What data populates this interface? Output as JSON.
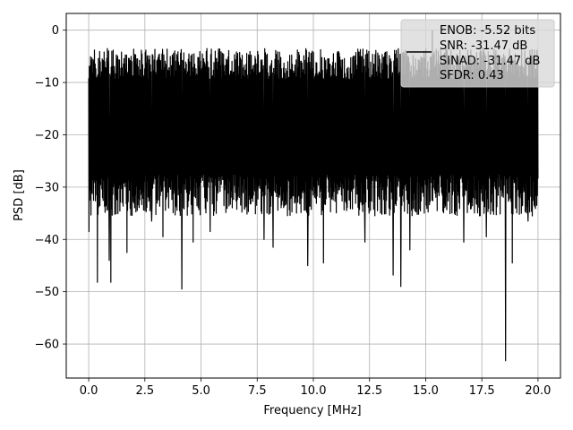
{
  "chart_data": {
    "type": "line",
    "xlabel": "Frequency [MHz]",
    "ylabel": "PSD [dB]",
    "xlim": [
      -1.0,
      21.0
    ],
    "ylim": [
      -66.5,
      3.2
    ],
    "xticks": [
      0.0,
      2.5,
      5.0,
      7.5,
      10.0,
      12.5,
      15.0,
      17.5,
      20.0
    ],
    "xtick_labels": [
      "0.0",
      "2.5",
      "5.0",
      "7.5",
      "10.0",
      "12.5",
      "15.0",
      "17.5",
      "20.0"
    ],
    "yticks": [
      0,
      -10,
      -20,
      -30,
      -40,
      -50,
      -60
    ],
    "ytick_labels": [
      "0",
      "−10",
      "−20",
      "−30",
      "−40",
      "−50",
      "−60"
    ],
    "grid": true,
    "legend_position": "upper-right",
    "line_color": "#000000",
    "series": [
      {
        "name": "ENOB: -5.52 bits\nSNR: -31.47 dB\nSINAD: -31.47 dB\nSFDR: 0.43",
        "x_range": [
          0.0,
          20.0
        ],
        "y_range": [
          -63.2,
          -0.1
        ],
        "envelope_top": -3.5,
        "envelope_bottom": -31.5,
        "notable_dips": [
          {
            "x": 0.02,
            "y": -38.5
          },
          {
            "x": 0.38,
            "y": -48.2
          },
          {
            "x": 0.92,
            "y": -44.0
          },
          {
            "x": 0.98,
            "y": -48.2
          },
          {
            "x": 1.7,
            "y": -42.5
          },
          {
            "x": 2.8,
            "y": -36.5
          },
          {
            "x": 3.3,
            "y": -39.5
          },
          {
            "x": 4.15,
            "y": -49.5
          },
          {
            "x": 4.65,
            "y": -40.5
          },
          {
            "x": 5.4,
            "y": -38.5
          },
          {
            "x": 7.8,
            "y": -40.0
          },
          {
            "x": 8.2,
            "y": -41.5
          },
          {
            "x": 9.75,
            "y": -45.0
          },
          {
            "x": 10.45,
            "y": -44.5
          },
          {
            "x": 12.3,
            "y": -40.5
          },
          {
            "x": 13.55,
            "y": -46.8
          },
          {
            "x": 13.9,
            "y": -49.0
          },
          {
            "x": 14.3,
            "y": -42.0
          },
          {
            "x": 16.7,
            "y": -40.5
          },
          {
            "x": 17.7,
            "y": -39.5
          },
          {
            "x": 18.55,
            "y": -63.2
          },
          {
            "x": 18.85,
            "y": -44.5
          },
          {
            "x": 19.55,
            "y": -36.5
          }
        ],
        "peak": {
          "x": 15.3,
          "y": -0.1
        }
      }
    ],
    "legend_lines": [
      "ENOB: -5.52 bits",
      "SNR: -31.47 dB",
      "SINAD: -31.47 dB",
      "SFDR: 0.43"
    ]
  }
}
